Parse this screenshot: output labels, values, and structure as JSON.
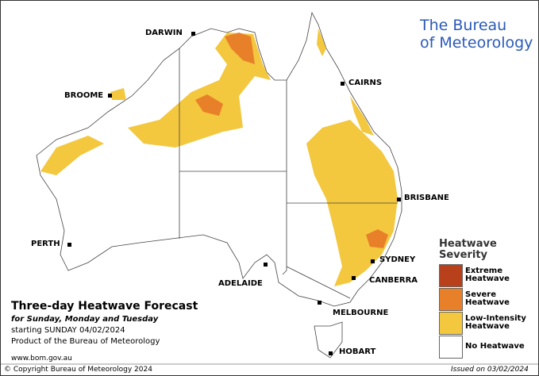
{
  "logo": {
    "line1": "The Bureau",
    "line2": "of Meteorology"
  },
  "cities": [
    {
      "label": "DARWIN"
    },
    {
      "label": "BROOME"
    },
    {
      "label": "CAIRNS"
    },
    {
      "label": "BRISBANE"
    },
    {
      "label": "PERTH"
    },
    {
      "label": "SYDNEY"
    },
    {
      "label": "CANBERRA"
    },
    {
      "label": "ADELAIDE"
    },
    {
      "label": "MELBOURNE"
    },
    {
      "label": "HOBART"
    }
  ],
  "heading": {
    "title": "Three-day Heatwave Forecast",
    "subtitle": "for Sunday, Monday and Tuesday",
    "starting": "starting SUNDAY 04/02/2024",
    "product": "Product of the Bureau of Meteorology",
    "url": "www.bom.gov.au"
  },
  "legend": {
    "title": "Heatwave Severity",
    "items": [
      {
        "label": "Extreme Heatwave",
        "color": "#b8401a"
      },
      {
        "label": "Severe Heatwave",
        "color": "#e8802a"
      },
      {
        "label": "Low-Intensity Heatwave",
        "color": "#f3c73e"
      },
      {
        "label": "No Heatwave",
        "color": "#ffffff"
      }
    ]
  },
  "footer": {
    "copyright": "© Copyright Bureau of Meteorology 2024",
    "issued": "Issued on 03/02/2024"
  }
}
